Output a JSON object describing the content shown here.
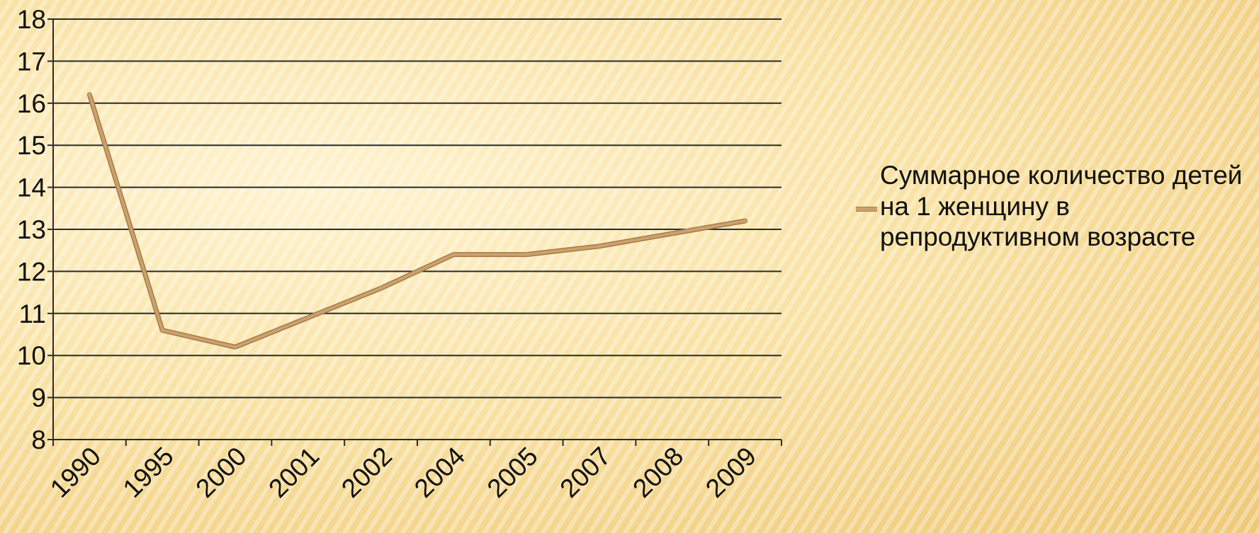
{
  "chart_data": {
    "type": "line",
    "categories": [
      "1990",
      "1995",
      "2000",
      "2001",
      "2002",
      "2004",
      "2005",
      "2007",
      "2008",
      "2009"
    ],
    "series": [
      {
        "name": "Суммарное количество детей на 1 женщину в репродуктивном возрасте",
        "values": [
          16.2,
          10.6,
          10.2,
          10.9,
          11.6,
          12.4,
          12.4,
          12.6,
          12.9,
          13.2
        ],
        "color": "#c9a26c"
      }
    ],
    "title": "",
    "xlabel": "",
    "ylabel": "",
    "ylim": [
      8,
      18
    ],
    "yticks": [
      8,
      9,
      10,
      11,
      12,
      13,
      14,
      15,
      16,
      17,
      18
    ],
    "grid": "horizontal",
    "legend_position": "right"
  },
  "legend": {
    "label": "Суммарное количество детей на 1 женщину в репродуктивном возрасте"
  },
  "colors": {
    "background": "#f5d98c",
    "gridline": "#2b2b2b",
    "series_line": "#c9a26c",
    "series_outline": "#a9784a"
  }
}
